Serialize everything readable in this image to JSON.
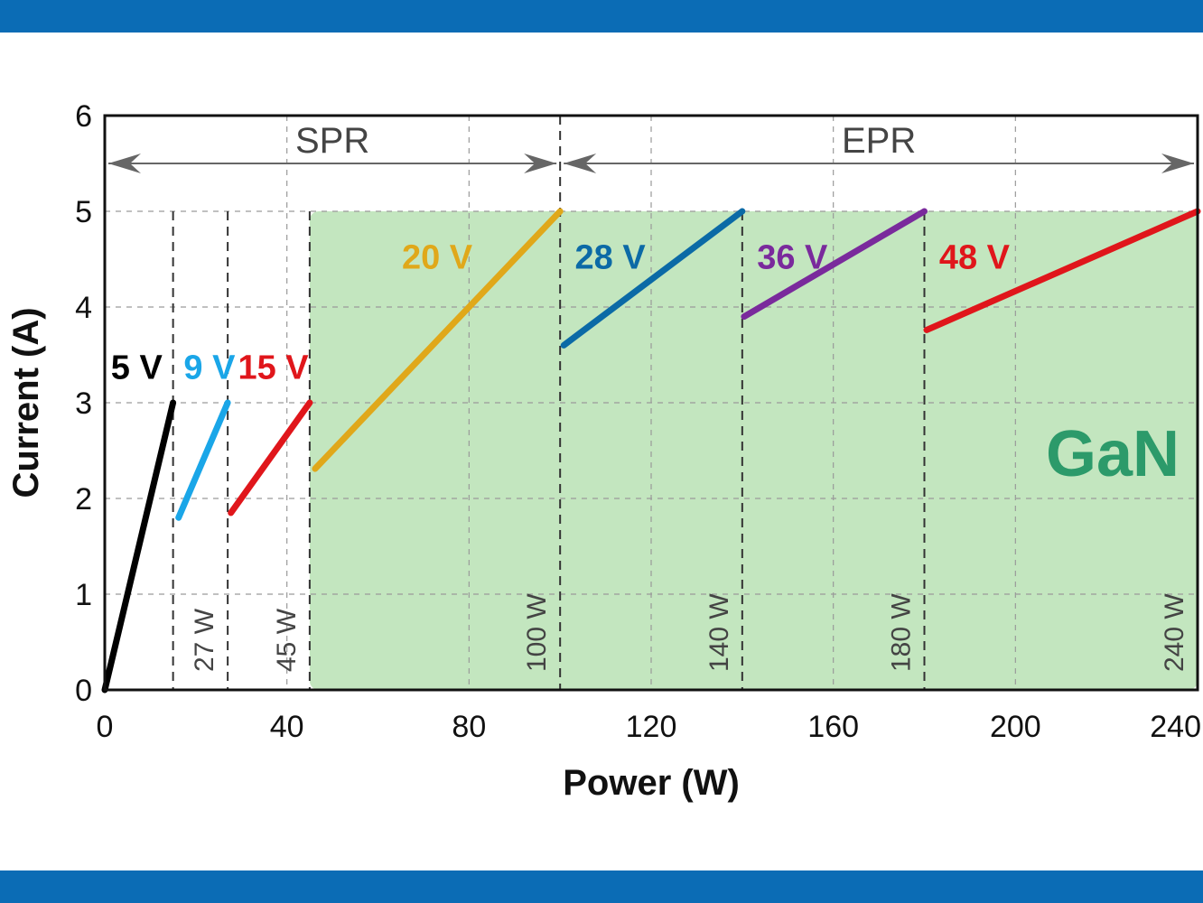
{
  "colors": {
    "band": "#0b6cb5",
    "shade": "#c3e6bf",
    "gan": "#2c9a6a",
    "grid": "#9a9a9a",
    "arrow": "#666666"
  },
  "chart_data": {
    "type": "line",
    "xlabel": "Power (W)",
    "ylabel": "Current (A)",
    "xlim": [
      0,
      240
    ],
    "ylim": [
      0,
      6
    ],
    "xticks": [
      "0",
      "40",
      "80",
      "120",
      "160",
      "200",
      "240"
    ],
    "yticks": [
      "0",
      "1",
      "2",
      "3",
      "4",
      "5",
      "6"
    ],
    "grid": true,
    "series": [
      {
        "name": "5 V",
        "color": "#000000",
        "points": [
          [
            0,
            0
          ],
          [
            15,
            3
          ]
        ]
      },
      {
        "name": "9 V",
        "color": "#1aa6e8",
        "points": [
          [
            16.2,
            1.8
          ],
          [
            27,
            3
          ]
        ]
      },
      {
        "name": "15 V",
        "color": "#e0161b",
        "points": [
          [
            27.7,
            1.85
          ],
          [
            45,
            3
          ]
        ]
      },
      {
        "name": "20 V",
        "color": "#e0a81a",
        "points": [
          [
            46.2,
            2.31
          ],
          [
            100,
            5
          ]
        ]
      },
      {
        "name": "28 V",
        "color": "#0b6aa6",
        "points": [
          [
            100.8,
            3.6
          ],
          [
            140,
            5
          ]
        ]
      },
      {
        "name": "36 V",
        "color": "#7a2a9c",
        "points": [
          [
            140.4,
            3.9
          ],
          [
            180,
            5
          ]
        ]
      },
      {
        "name": "48 V",
        "color": "#e0161b",
        "points": [
          [
            180.5,
            3.76
          ],
          [
            240,
            5
          ]
        ]
      }
    ],
    "power_markers": [
      {
        "x": 15,
        "label": ""
      },
      {
        "x": 27,
        "label": "27 W"
      },
      {
        "x": 45,
        "label": "45 W"
      },
      {
        "x": 100,
        "label": "100 W"
      },
      {
        "x": 140,
        "label": "140 W"
      },
      {
        "x": 180,
        "label": "180 W"
      },
      {
        "x": 240,
        "label": "240 W"
      }
    ],
    "regions": [
      {
        "label": "SPR",
        "from": 0,
        "to": 100
      },
      {
        "label": "EPR",
        "from": 100,
        "to": 240
      }
    ],
    "shaded_region": {
      "x_from": 45,
      "x_to": 240,
      "y_from": 0,
      "y_to": 5,
      "label": "GaN"
    }
  }
}
